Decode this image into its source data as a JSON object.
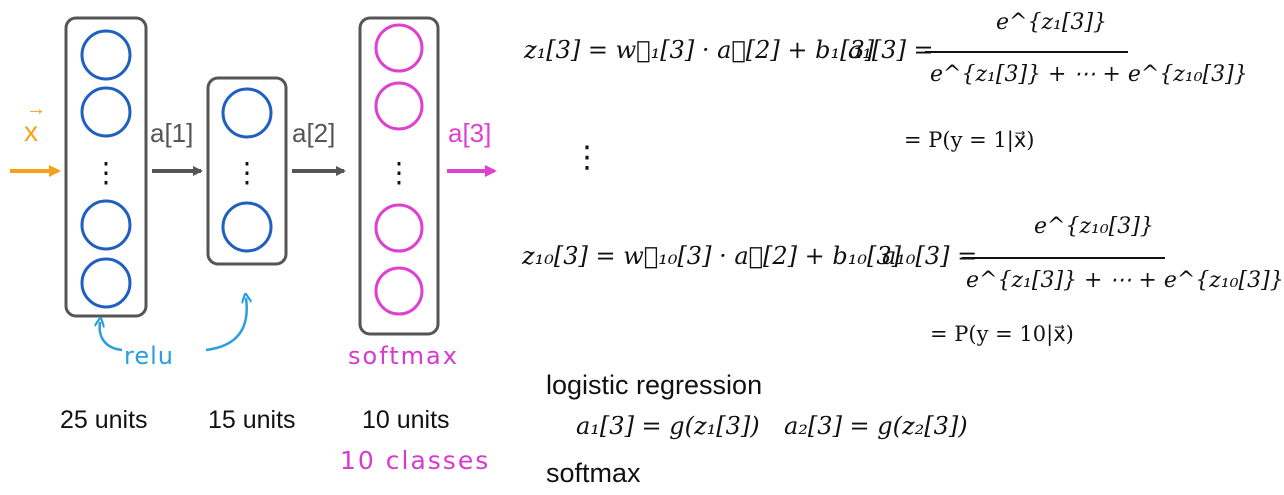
{
  "colors": {
    "input": "#f5a01a",
    "hidden_units": "#1f5fbf",
    "output_units": "#e040d0",
    "sub_one": "#b0182a",
    "sub_ten": "#7a2fa0",
    "relu_note": "#2a9ee0",
    "softmax_note": "#d63ad0",
    "box": "#555555"
  },
  "network": {
    "input_label": "x",
    "arrow_label_1": "a[1]",
    "arrow_label_2": "a[2]",
    "output_label": "a[3]",
    "layer1_units": "25 units",
    "layer2_units": "15 units",
    "layer3_units": "10 units",
    "layer3_classes": "10 classes",
    "relu_note": "relu",
    "softmax_note": "softmax"
  },
  "equations": {
    "z1": "z₁[3] = w⃗₁[3] · a⃗[2] + b₁[3]",
    "z10": "z₁₀[3] = w⃗₁₀[3] · a⃗[2] + b₁₀[3]",
    "a1_lhs": "a₁[3] =",
    "a1_num": "e^{z₁[3]}",
    "a1_den": "e^{z₁[3]} + ⋯ + e^{z₁₀[3]}",
    "a1_prob": "= P(y = 1|x⃗)",
    "a10_lhs": "a₁₀[3] =",
    "a10_num": "e^{z₁₀[3]}",
    "a10_den": "e^{z₁[3]} + ⋯ + e^{z₁₀[3]}",
    "a10_prob": "= P(y = 10|x⃗)",
    "vdots": "⋮"
  },
  "logistic": {
    "heading": "logistic regression",
    "a1": "a₁[3] = g(z₁[3])",
    "a2": "a₂[3] = g(z₂[3])",
    "softmax_heading": "softmax"
  }
}
